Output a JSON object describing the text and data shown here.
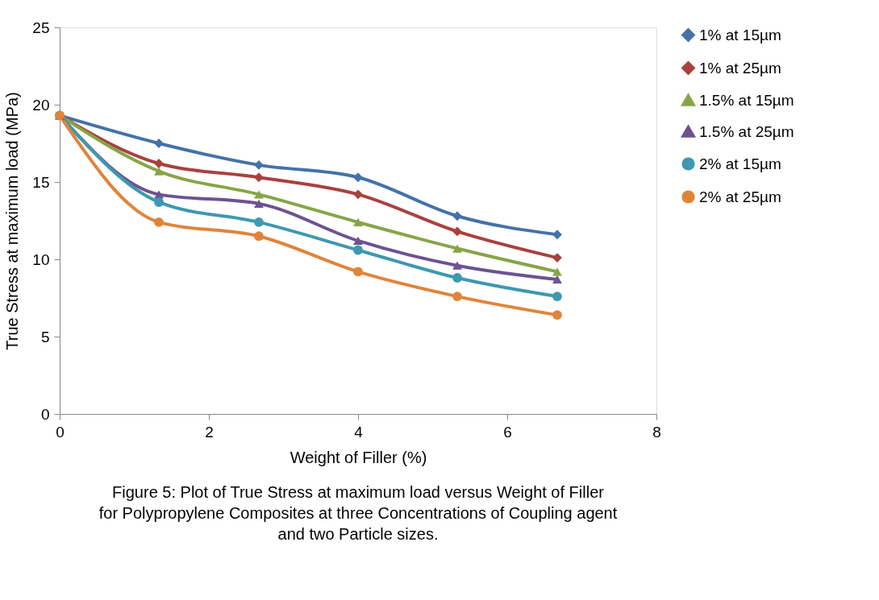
{
  "chart_data": {
    "type": "line",
    "xlabel": "Weight of Filler (%)",
    "ylabel": "True Stress at maximum load (MPa)",
    "x": [
      0,
      1.33,
      2.67,
      4,
      5.33,
      6.67
    ],
    "series": [
      {
        "name": "1% at 15µm",
        "color": "#4472a8",
        "marker": "diamond",
        "values": [
          19.3,
          17.5,
          16.1,
          15.3,
          12.8,
          11.6
        ]
      },
      {
        "name": "1% at 25µm",
        "color": "#a9413e",
        "marker": "diamond",
        "values": [
          19.3,
          16.2,
          15.3,
          14.2,
          11.8,
          10.1
        ]
      },
      {
        "name": "1.5% at 15µm",
        "color": "#87a548",
        "marker": "triangle",
        "values": [
          19.3,
          15.7,
          14.2,
          12.4,
          10.7,
          9.2
        ]
      },
      {
        "name": "1.5% at 25µm",
        "color": "#6c5390",
        "marker": "triangle",
        "values": [
          19.3,
          14.2,
          13.6,
          11.2,
          9.6,
          8.7
        ]
      },
      {
        "name": "2% at 15µm",
        "color": "#3e98b0",
        "marker": "circle",
        "values": [
          19.3,
          13.7,
          12.4,
          10.6,
          8.8,
          7.6
        ]
      },
      {
        "name": "2% at 25µm",
        "color": "#e0843a",
        "marker": "circle",
        "values": [
          19.3,
          12.4,
          11.5,
          9.2,
          7.6,
          6.4
        ]
      }
    ],
    "xlim": [
      0,
      8
    ],
    "xticks": [
      {
        "value": 0,
        "label": "0"
      },
      {
        "value": 2,
        "label": "2"
      },
      {
        "value": 4,
        "label": "4"
      },
      {
        "value": 6,
        "label": "6"
      },
      {
        "value": 8,
        "label": "8"
      }
    ],
    "ylim": [
      0,
      25
    ],
    "yticks": [
      0,
      5,
      10,
      15,
      20,
      25
    ],
    "grid": false,
    "legend": "right",
    "line_style": "solid",
    "annotations": [
      "Figure 5: Plot of True Stress at maximum load versus Weight of Filler for Polypropylene Composites at three Concentrations of Coupling agent and two Particle sizes."
    ]
  }
}
